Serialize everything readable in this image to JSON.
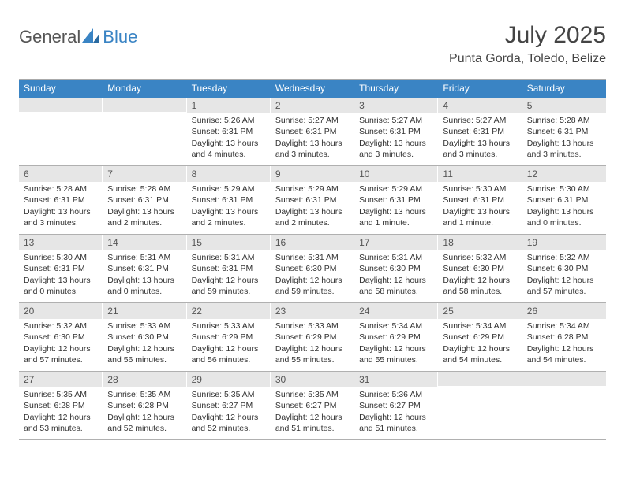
{
  "logo": {
    "text1": "General",
    "text2": "Blue"
  },
  "title": "July 2025",
  "location": "Punta Gorda, Toledo, Belize",
  "weekdays": [
    "Sunday",
    "Monday",
    "Tuesday",
    "Wednesday",
    "Thursday",
    "Friday",
    "Saturday"
  ],
  "style": {
    "header_bg": "#3a84c4",
    "header_fg": "#ffffff",
    "daynum_bg": "#e6e6e6",
    "border": "#b0b0b0",
    "title_fontsize": 30,
    "location_fontsize": 16,
    "weekday_fontsize": 12,
    "body_fontsize": 10.5
  },
  "weeks": [
    [
      {
        "n": "",
        "lines": []
      },
      {
        "n": "",
        "lines": []
      },
      {
        "n": "1",
        "lines": [
          "Sunrise: 5:26 AM",
          "Sunset: 6:31 PM",
          "Daylight: 13 hours and 4 minutes."
        ]
      },
      {
        "n": "2",
        "lines": [
          "Sunrise: 5:27 AM",
          "Sunset: 6:31 PM",
          "Daylight: 13 hours and 3 minutes."
        ]
      },
      {
        "n": "3",
        "lines": [
          "Sunrise: 5:27 AM",
          "Sunset: 6:31 PM",
          "Daylight: 13 hours and 3 minutes."
        ]
      },
      {
        "n": "4",
        "lines": [
          "Sunrise: 5:27 AM",
          "Sunset: 6:31 PM",
          "Daylight: 13 hours and 3 minutes."
        ]
      },
      {
        "n": "5",
        "lines": [
          "Sunrise: 5:28 AM",
          "Sunset: 6:31 PM",
          "Daylight: 13 hours and 3 minutes."
        ]
      }
    ],
    [
      {
        "n": "6",
        "lines": [
          "Sunrise: 5:28 AM",
          "Sunset: 6:31 PM",
          "Daylight: 13 hours and 3 minutes."
        ]
      },
      {
        "n": "7",
        "lines": [
          "Sunrise: 5:28 AM",
          "Sunset: 6:31 PM",
          "Daylight: 13 hours and 2 minutes."
        ]
      },
      {
        "n": "8",
        "lines": [
          "Sunrise: 5:29 AM",
          "Sunset: 6:31 PM",
          "Daylight: 13 hours and 2 minutes."
        ]
      },
      {
        "n": "9",
        "lines": [
          "Sunrise: 5:29 AM",
          "Sunset: 6:31 PM",
          "Daylight: 13 hours and 2 minutes."
        ]
      },
      {
        "n": "10",
        "lines": [
          "Sunrise: 5:29 AM",
          "Sunset: 6:31 PM",
          "Daylight: 13 hours and 1 minute."
        ]
      },
      {
        "n": "11",
        "lines": [
          "Sunrise: 5:30 AM",
          "Sunset: 6:31 PM",
          "Daylight: 13 hours and 1 minute."
        ]
      },
      {
        "n": "12",
        "lines": [
          "Sunrise: 5:30 AM",
          "Sunset: 6:31 PM",
          "Daylight: 13 hours and 0 minutes."
        ]
      }
    ],
    [
      {
        "n": "13",
        "lines": [
          "Sunrise: 5:30 AM",
          "Sunset: 6:31 PM",
          "Daylight: 13 hours and 0 minutes."
        ]
      },
      {
        "n": "14",
        "lines": [
          "Sunrise: 5:31 AM",
          "Sunset: 6:31 PM",
          "Daylight: 13 hours and 0 minutes."
        ]
      },
      {
        "n": "15",
        "lines": [
          "Sunrise: 5:31 AM",
          "Sunset: 6:31 PM",
          "Daylight: 12 hours and 59 minutes."
        ]
      },
      {
        "n": "16",
        "lines": [
          "Sunrise: 5:31 AM",
          "Sunset: 6:30 PM",
          "Daylight: 12 hours and 59 minutes."
        ]
      },
      {
        "n": "17",
        "lines": [
          "Sunrise: 5:31 AM",
          "Sunset: 6:30 PM",
          "Daylight: 12 hours and 58 minutes."
        ]
      },
      {
        "n": "18",
        "lines": [
          "Sunrise: 5:32 AM",
          "Sunset: 6:30 PM",
          "Daylight: 12 hours and 58 minutes."
        ]
      },
      {
        "n": "19",
        "lines": [
          "Sunrise: 5:32 AM",
          "Sunset: 6:30 PM",
          "Daylight: 12 hours and 57 minutes."
        ]
      }
    ],
    [
      {
        "n": "20",
        "lines": [
          "Sunrise: 5:32 AM",
          "Sunset: 6:30 PM",
          "Daylight: 12 hours and 57 minutes."
        ]
      },
      {
        "n": "21",
        "lines": [
          "Sunrise: 5:33 AM",
          "Sunset: 6:30 PM",
          "Daylight: 12 hours and 56 minutes."
        ]
      },
      {
        "n": "22",
        "lines": [
          "Sunrise: 5:33 AM",
          "Sunset: 6:29 PM",
          "Daylight: 12 hours and 56 minutes."
        ]
      },
      {
        "n": "23",
        "lines": [
          "Sunrise: 5:33 AM",
          "Sunset: 6:29 PM",
          "Daylight: 12 hours and 55 minutes."
        ]
      },
      {
        "n": "24",
        "lines": [
          "Sunrise: 5:34 AM",
          "Sunset: 6:29 PM",
          "Daylight: 12 hours and 55 minutes."
        ]
      },
      {
        "n": "25",
        "lines": [
          "Sunrise: 5:34 AM",
          "Sunset: 6:29 PM",
          "Daylight: 12 hours and 54 minutes."
        ]
      },
      {
        "n": "26",
        "lines": [
          "Sunrise: 5:34 AM",
          "Sunset: 6:28 PM",
          "Daylight: 12 hours and 54 minutes."
        ]
      }
    ],
    [
      {
        "n": "27",
        "lines": [
          "Sunrise: 5:35 AM",
          "Sunset: 6:28 PM",
          "Daylight: 12 hours and 53 minutes."
        ]
      },
      {
        "n": "28",
        "lines": [
          "Sunrise: 5:35 AM",
          "Sunset: 6:28 PM",
          "Daylight: 12 hours and 52 minutes."
        ]
      },
      {
        "n": "29",
        "lines": [
          "Sunrise: 5:35 AM",
          "Sunset: 6:27 PM",
          "Daylight: 12 hours and 52 minutes."
        ]
      },
      {
        "n": "30",
        "lines": [
          "Sunrise: 5:35 AM",
          "Sunset: 6:27 PM",
          "Daylight: 12 hours and 51 minutes."
        ]
      },
      {
        "n": "31",
        "lines": [
          "Sunrise: 5:36 AM",
          "Sunset: 6:27 PM",
          "Daylight: 12 hours and 51 minutes."
        ]
      },
      {
        "n": "",
        "lines": []
      },
      {
        "n": "",
        "lines": []
      }
    ]
  ]
}
